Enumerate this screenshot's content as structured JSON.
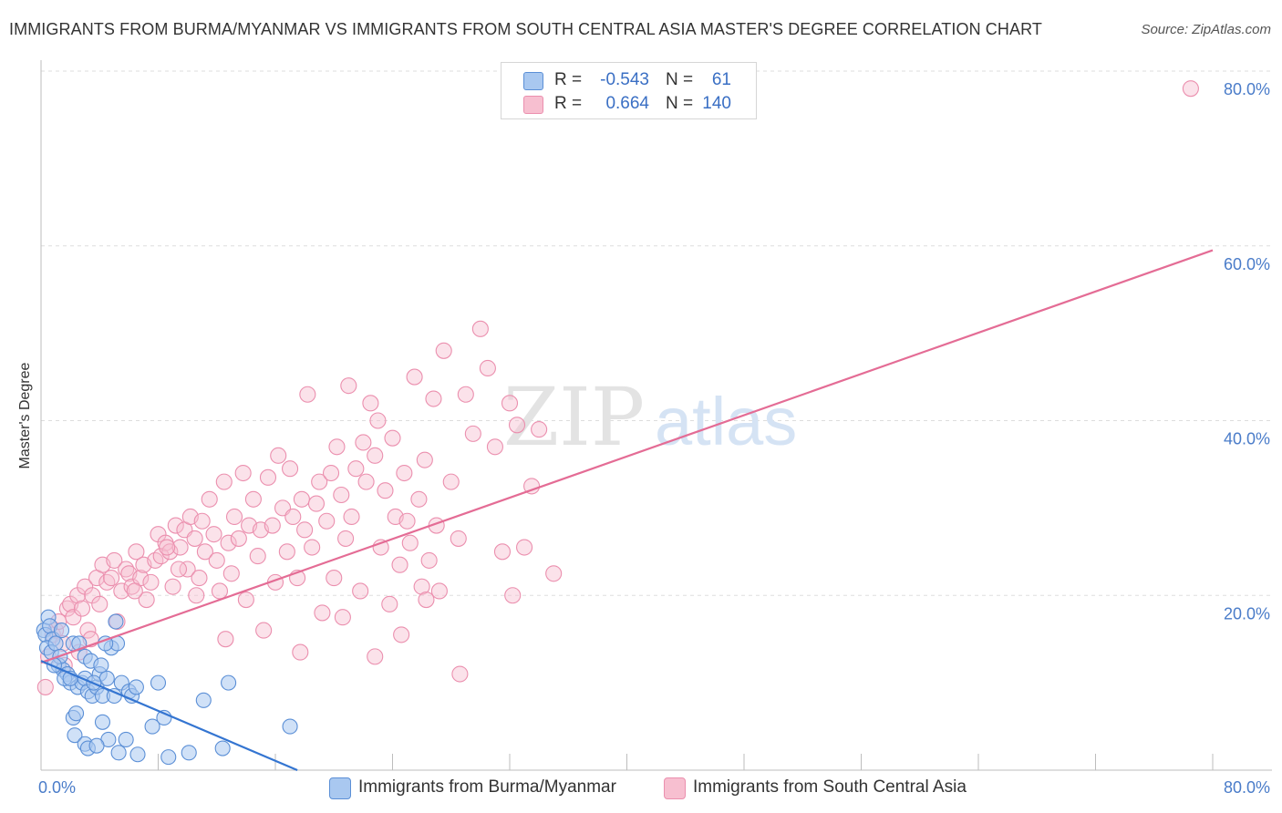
{
  "title": "IMMIGRANTS FROM BURMA/MYANMAR VS IMMIGRANTS FROM SOUTH CENTRAL ASIA MASTER'S DEGREE CORRELATION CHART",
  "source": "Source: ZipAtlas.com",
  "watermark": {
    "zip": "ZIP",
    "atlas": "atlas"
  },
  "legend": {
    "r_label": "R =",
    "n_label": "N =",
    "series": [
      {
        "r": "-0.543",
        "n": "61"
      },
      {
        "r": "0.664",
        "n": "140"
      }
    ]
  },
  "colors": {
    "blue_fill": "#a9c8f0",
    "blue_stroke": "#5b8fd6",
    "blue_line": "#3475d1",
    "pink_fill": "#f7bfd0",
    "pink_stroke": "#eb8fae",
    "pink_line": "#e46c95",
    "tick_text": "#4a7cc9",
    "grid": "#dddddd"
  },
  "chart_data": {
    "type": "scatter",
    "title": "IMMIGRANTS FROM BURMA/MYANMAR VS IMMIGRANTS FROM SOUTH CENTRAL ASIA MASTER'S DEGREE CORRELATION CHART",
    "xlabel": "",
    "ylabel": "Master's Degree",
    "xlim": [
      0,
      80
    ],
    "ylim": [
      0,
      80
    ],
    "x_tick_labels": [
      "0.0%",
      "80.0%"
    ],
    "y_ticks": [
      20,
      40,
      60,
      80
    ],
    "y_tick_labels": [
      "20.0%",
      "40.0%",
      "60.0%",
      "80.0%"
    ],
    "legend_position": "bottom",
    "series": [
      {
        "name": "Immigrants from Burma/Myanmar",
        "color": "#a9c8f0",
        "r": -0.543,
        "n": 61,
        "trend": {
          "x": [
            0,
            17.5
          ],
          "y": [
            12.5,
            0
          ]
        },
        "points": [
          [
            0.2,
            16
          ],
          [
            0.3,
            15.5
          ],
          [
            0.5,
            17.5
          ],
          [
            0.6,
            16.5
          ],
          [
            0.8,
            15
          ],
          [
            0.4,
            14
          ],
          [
            0.7,
            13.5
          ],
          [
            1.0,
            14.5
          ],
          [
            1.2,
            12
          ],
          [
            1.5,
            11.5
          ],
          [
            1.3,
            13
          ],
          [
            1.8,
            11
          ],
          [
            2.0,
            10
          ],
          [
            2.2,
            14.5
          ],
          [
            1.6,
            10.5
          ],
          [
            2.5,
            9.5
          ],
          [
            2.8,
            10
          ],
          [
            3.0,
            10.5
          ],
          [
            3.2,
            9
          ],
          [
            3.5,
            8.5
          ],
          [
            2.6,
            14.5
          ],
          [
            3.8,
            9.5
          ],
          [
            4.0,
            11
          ],
          [
            4.2,
            8.5
          ],
          [
            4.5,
            10.5
          ],
          [
            3.0,
            13
          ],
          [
            3.4,
            12.5
          ],
          [
            4.8,
            14
          ],
          [
            5.0,
            8.5
          ],
          [
            5.5,
            10
          ],
          [
            6.0,
            9
          ],
          [
            6.2,
            8.5
          ],
          [
            5.2,
            14.5
          ],
          [
            4.4,
            14.5
          ],
          [
            2.2,
            6
          ],
          [
            2.4,
            6.5
          ],
          [
            2.3,
            4
          ],
          [
            3.0,
            3
          ],
          [
            3.2,
            2.5
          ],
          [
            4.2,
            5.5
          ],
          [
            4.6,
            3.5
          ],
          [
            3.8,
            2.8
          ],
          [
            5.3,
            2
          ],
          [
            5.8,
            3.5
          ],
          [
            6.6,
            1.8
          ],
          [
            6.5,
            9.5
          ],
          [
            8.0,
            10
          ],
          [
            7.6,
            5
          ],
          [
            8.4,
            6
          ],
          [
            8.7,
            1.5
          ],
          [
            10.1,
            2
          ],
          [
            11.1,
            8
          ],
          [
            12.4,
            2.5
          ],
          [
            12.8,
            10
          ],
          [
            17.0,
            5
          ],
          [
            0.9,
            12
          ],
          [
            1.4,
            16
          ],
          [
            2.0,
            10.5
          ],
          [
            3.6,
            10
          ],
          [
            4.1,
            12
          ],
          [
            5.1,
            17
          ]
        ]
      },
      {
        "name": "Immigrants from South Central Asia",
        "color": "#f7bfd0",
        "r": 0.664,
        "n": 140,
        "trend": {
          "x": [
            0,
            80
          ],
          "y": [
            12.3,
            59.5
          ]
        },
        "points": [
          [
            0.3,
            9.5
          ],
          [
            0.5,
            13
          ],
          [
            0.8,
            15.5
          ],
          [
            1.0,
            16
          ],
          [
            1.2,
            17
          ],
          [
            1.5,
            14.5
          ],
          [
            1.8,
            18.5
          ],
          [
            2.0,
            19
          ],
          [
            2.2,
            17.5
          ],
          [
            2.5,
            20
          ],
          [
            2.8,
            18.5
          ],
          [
            3.0,
            21
          ],
          [
            3.2,
            16
          ],
          [
            3.5,
            20
          ],
          [
            3.8,
            22
          ],
          [
            4.0,
            19
          ],
          [
            4.2,
            23.5
          ],
          [
            4.5,
            21.5
          ],
          [
            4.8,
            22
          ],
          [
            5.0,
            24
          ],
          [
            5.2,
            17
          ],
          [
            5.5,
            20.5
          ],
          [
            5.8,
            23
          ],
          [
            6.0,
            22.5
          ],
          [
            6.2,
            21
          ],
          [
            6.5,
            25
          ],
          [
            6.8,
            22
          ],
          [
            7.0,
            23.5
          ],
          [
            7.2,
            19.5
          ],
          [
            7.5,
            21.5
          ],
          [
            7.8,
            24
          ],
          [
            8.0,
            27
          ],
          [
            8.2,
            24.5
          ],
          [
            8.5,
            26
          ],
          [
            8.8,
            25
          ],
          [
            9.0,
            21
          ],
          [
            9.2,
            28
          ],
          [
            9.5,
            25.5
          ],
          [
            9.8,
            27.5
          ],
          [
            10.0,
            23
          ],
          [
            10.2,
            29
          ],
          [
            10.5,
            26.5
          ],
          [
            10.8,
            22
          ],
          [
            11.0,
            28.5
          ],
          [
            11.2,
            25
          ],
          [
            11.5,
            31
          ],
          [
            11.8,
            27
          ],
          [
            12.0,
            24
          ],
          [
            12.2,
            20.5
          ],
          [
            12.5,
            33
          ],
          [
            12.8,
            26
          ],
          [
            13.0,
            22.5
          ],
          [
            13.2,
            29
          ],
          [
            13.5,
            26.5
          ],
          [
            13.8,
            34
          ],
          [
            14.0,
            19.5
          ],
          [
            14.2,
            28
          ],
          [
            14.5,
            31
          ],
          [
            14.8,
            24.5
          ],
          [
            15.0,
            27.5
          ],
          [
            15.2,
            16
          ],
          [
            15.5,
            33.5
          ],
          [
            15.8,
            28
          ],
          [
            16.0,
            21.5
          ],
          [
            16.2,
            36
          ],
          [
            16.5,
            30
          ],
          [
            16.8,
            25
          ],
          [
            17.0,
            34.5
          ],
          [
            17.2,
            29
          ],
          [
            17.5,
            22
          ],
          [
            17.8,
            31
          ],
          [
            18.0,
            27.5
          ],
          [
            18.2,
            43
          ],
          [
            18.5,
            25.5
          ],
          [
            18.8,
            30.5
          ],
          [
            19.0,
            33
          ],
          [
            19.2,
            18
          ],
          [
            19.5,
            28.5
          ],
          [
            19.8,
            34
          ],
          [
            20.0,
            22
          ],
          [
            20.2,
            37
          ],
          [
            20.5,
            31.5
          ],
          [
            20.8,
            26.5
          ],
          [
            21.0,
            44
          ],
          [
            21.2,
            29
          ],
          [
            21.5,
            34.5
          ],
          [
            21.8,
            20.5
          ],
          [
            22.0,
            37.5
          ],
          [
            22.2,
            33
          ],
          [
            22.5,
            42
          ],
          [
            22.8,
            36
          ],
          [
            23.0,
            40
          ],
          [
            23.2,
            25.5
          ],
          [
            23.5,
            32
          ],
          [
            23.8,
            19
          ],
          [
            24.0,
            38
          ],
          [
            24.2,
            29
          ],
          [
            24.5,
            23.5
          ],
          [
            24.8,
            34
          ],
          [
            25.0,
            28.5
          ],
          [
            25.2,
            26
          ],
          [
            25.5,
            45
          ],
          [
            25.8,
            31
          ],
          [
            26.0,
            21
          ],
          [
            26.2,
            35.5
          ],
          [
            26.5,
            24
          ],
          [
            26.8,
            42.5
          ],
          [
            27.0,
            28
          ],
          [
            27.2,
            20.5
          ],
          [
            27.5,
            48
          ],
          [
            28.0,
            33
          ],
          [
            28.5,
            26.5
          ],
          [
            29.0,
            43
          ],
          [
            29.5,
            38.5
          ],
          [
            30.0,
            50.5
          ],
          [
            30.5,
            46
          ],
          [
            31.0,
            37
          ],
          [
            31.5,
            25
          ],
          [
            32.0,
            42
          ],
          [
            32.5,
            39.5
          ],
          [
            33.0,
            25.5
          ],
          [
            33.5,
            32.5
          ],
          [
            34.0,
            39
          ],
          [
            35.0,
            22.5
          ],
          [
            78.5,
            78
          ],
          [
            1.6,
            12
          ],
          [
            2.6,
            13.5
          ],
          [
            3.4,
            15
          ],
          [
            12.6,
            15
          ],
          [
            17.7,
            13.5
          ],
          [
            20.6,
            17.5
          ],
          [
            22.8,
            13
          ],
          [
            24.6,
            15.5
          ],
          [
            26.3,
            19.5
          ],
          [
            28.6,
            11
          ],
          [
            32.2,
            20
          ],
          [
            6.4,
            20.5
          ],
          [
            8.6,
            25.5
          ],
          [
            9.4,
            23
          ],
          [
            10.6,
            20
          ]
        ]
      }
    ]
  },
  "bottom_legend": [
    {
      "label": "Immigrants from Burma/Myanmar"
    },
    {
      "label": "Immigrants from South Central Asia"
    }
  ]
}
